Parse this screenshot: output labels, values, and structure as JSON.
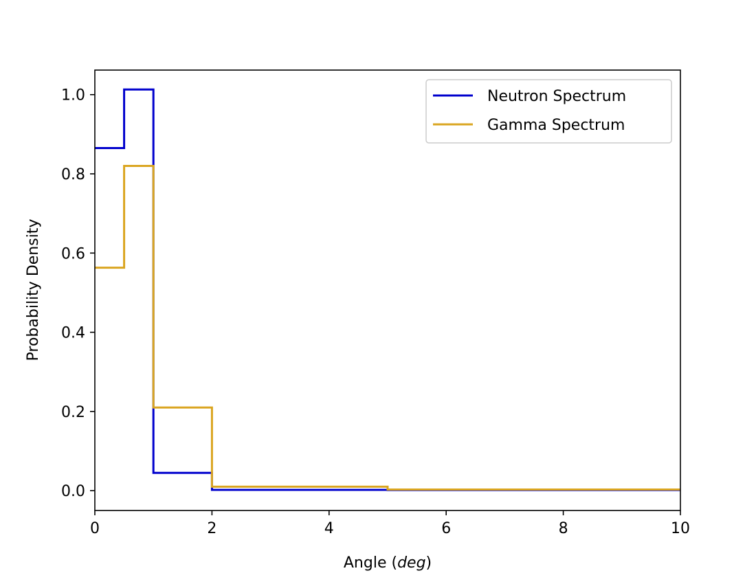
{
  "chart_data": {
    "type": "line",
    "step": "post",
    "xlabel_prefix": "Angle (",
    "xlabel_var": "deg",
    "xlabel_suffix": ")",
    "ylabel": "Probability Density",
    "xlim": [
      0,
      10
    ],
    "ylim": [
      -0.05,
      1.062
    ],
    "xticks": [
      0,
      2,
      4,
      6,
      8,
      10
    ],
    "yticks": [
      0.0,
      0.2,
      0.4,
      0.6,
      0.8,
      1.0
    ],
    "ytick_labels": [
      "0.0",
      "0.2",
      "0.4",
      "0.6",
      "0.8",
      "1.0"
    ],
    "grid": false,
    "legend_position": "top-right",
    "series": [
      {
        "name": "Neutron Spectrum",
        "color": "#0000cd",
        "bin_edges": [
          0,
          0.5,
          1,
          2,
          5,
          10
        ],
        "values": [
          0.865,
          1.013,
          0.045,
          0.002,
          0.0017
        ]
      },
      {
        "name": "Gamma Spectrum",
        "color": "#daa520",
        "bin_edges": [
          0,
          0.5,
          1,
          2,
          5,
          10
        ],
        "values": [
          0.563,
          0.82,
          0.21,
          0.01,
          0.003
        ]
      }
    ]
  }
}
